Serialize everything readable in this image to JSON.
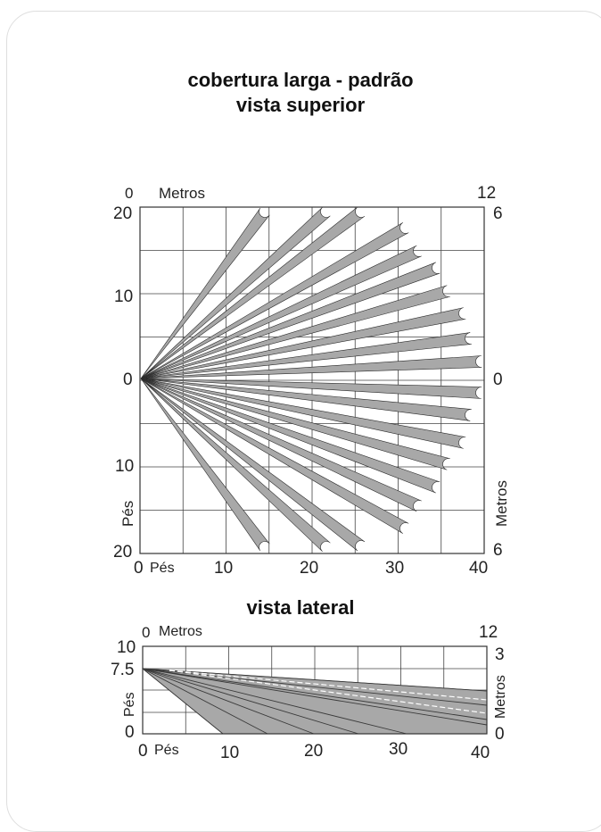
{
  "title": {
    "line1": "cobertura larga - padrão",
    "line2": "vista superior"
  },
  "top_view": {
    "metros_label": "Metros",
    "pes_bottom_label": "Pés",
    "pes_side_label": "Pés",
    "metros_side_label": "Metros",
    "left_ticks": [
      "20",
      "10",
      "0",
      "10",
      "20"
    ],
    "right_ticks": [
      "6",
      "0",
      "6"
    ],
    "top_left_metros": "0",
    "top_right_metros": "12",
    "bottom_ticks": [
      "0",
      "10",
      "20",
      "30",
      "40"
    ]
  },
  "side_view": {
    "title": "vista lateral",
    "metros_label": "Metros",
    "pes_bottom_label": "Pés",
    "pes_side_label": "Pés",
    "metros_side_label": "Metros",
    "left_ticks": [
      "10",
      "7.5",
      "0"
    ],
    "right_ticks": [
      "3",
      "0"
    ],
    "top_left_metros": "0",
    "top_right_metros": "12",
    "bottom_ticks": [
      "0",
      "10",
      "20",
      "30",
      "40"
    ]
  },
  "colors": {
    "beam": "#a8a8a8",
    "grid": "#444444",
    "frame": "#333333"
  }
}
